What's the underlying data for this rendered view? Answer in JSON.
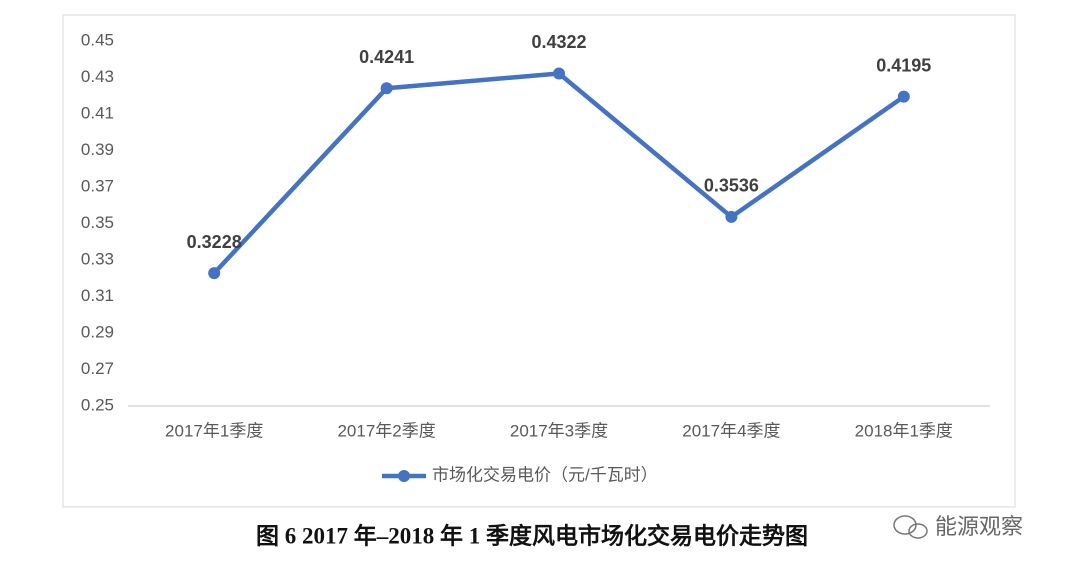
{
  "chart_data": {
    "type": "line",
    "categories": [
      "2017年1季度",
      "2017年2季度",
      "2017年3季度",
      "2017年4季度",
      "2018年1季度"
    ],
    "series": [
      {
        "name": "市场化交易电价（元/千瓦时）",
        "color": "#4472c4",
        "values": [
          0.3228,
          0.4241,
          0.4322,
          0.3536,
          0.4195
        ]
      }
    ],
    "ylim": [
      0.25,
      0.45
    ],
    "yticks": [
      0.25,
      0.27,
      0.29,
      0.31,
      0.33,
      0.35,
      0.37,
      0.39,
      0.41,
      0.43,
      0.45
    ],
    "grid": false,
    "legend": "bottom"
  },
  "caption": "图 6 2017 年–2018 年 1 季度风电市场化交易电价走势图",
  "watermark": "能源观察"
}
